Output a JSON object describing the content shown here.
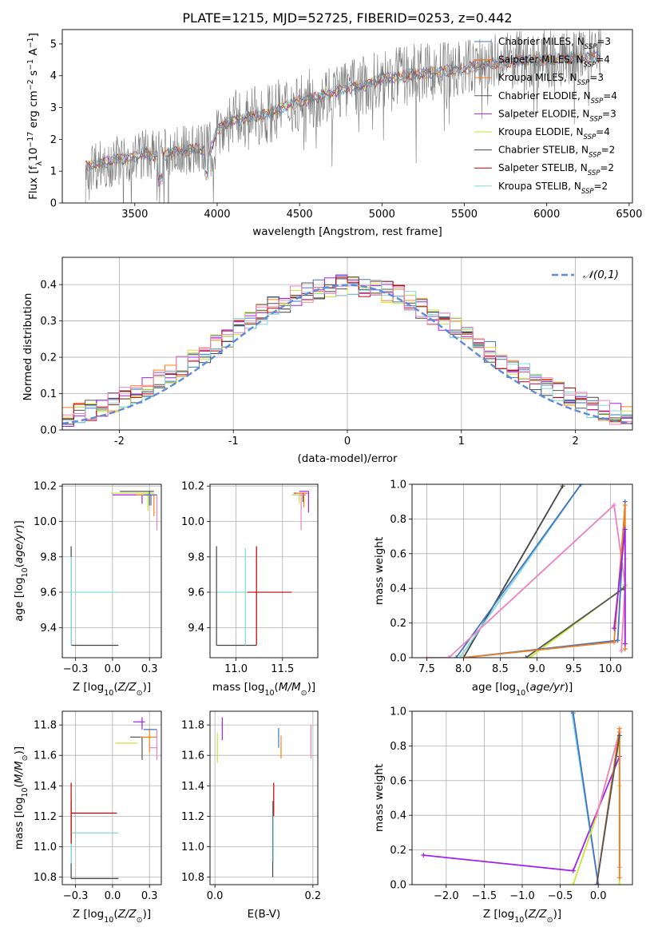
{
  "figure": {
    "title": "PLATE=1215, MJD=52725, FIBERID=0253, z=0.442"
  },
  "styles": {
    "Chabrier MILES": "#4472c4",
    "Salpeter MILES": "#ff7f0e",
    "Kroupa MILES": "#ff7f0e",
    "Chabrier ELODIE": "#555555",
    "Salpeter ELODIE": "#a020f0",
    "Kroupa ELODIE": "#c8e632",
    "Chabrier STELIB": "#444444",
    "Salpeter STELIB": "#c00000",
    "Kroupa STELIB": "#7fd9d9",
    "Kroupa MILES fit": "#ee7f1f",
    "Salpeter MILES pink": "#ee82c0",
    "normal_curve": "#5b8bd9"
  },
  "chart_data": [
    {
      "type": "line",
      "id": "spectrum",
      "xlabel": "wavelength [Angstrom, rest frame]",
      "ylabel": "Flux [f_λ10^-17 erg cm^-2 s^-1 A^-1]",
      "xlim": [
        3060,
        6520
      ],
      "ylim": [
        0,
        5.45
      ],
      "xticks": [
        3500,
        4000,
        4500,
        5000,
        5500,
        6000,
        6500
      ],
      "yticks": [
        0,
        1,
        2,
        3,
        4,
        5
      ],
      "grid": false,
      "legend_position": "upper-right",
      "legend": [
        {
          "label": "Chabrier MILES, N",
          "sub": "SSP",
          "suffix": "=3",
          "style": "Chabrier MILES"
        },
        {
          "label": "Salpeter MILES, N",
          "sub": "SSP",
          "suffix": "=4",
          "style": "Salpeter MILES"
        },
        {
          "label": "Kroupa MILES, N",
          "sub": "SSP",
          "suffix": "=3",
          "style": "Kroupa MILES"
        },
        {
          "label": "Chabrier ELODIE, N",
          "sub": "SSP",
          "suffix": "=4",
          "style": "Chabrier ELODIE"
        },
        {
          "label": "Salpeter ELODIE, N",
          "sub": "SSP",
          "suffix": "=3",
          "style": "Salpeter ELODIE"
        },
        {
          "label": "Kroupa ELODIE, N",
          "sub": "SSP",
          "suffix": "=4",
          "style": "Kroupa ELODIE"
        },
        {
          "label": "Chabrier STELIB, N",
          "sub": "SSP",
          "suffix": "=2",
          "style": "Chabrier STELIB"
        },
        {
          "label": "Salpeter STELIB, N",
          "sub": "SSP",
          "suffix": "=2",
          "style": "Salpeter STELIB"
        },
        {
          "label": "Kroupa STELIB, N",
          "sub": "SSP",
          "suffix": "=2",
          "style": "Kroupa STELIB"
        }
      ],
      "spectrum_knots": {
        "x": [
          3200,
          3300,
          3400,
          3500,
          3550,
          3600,
          3700,
          3800,
          3900,
          3950,
          4000,
          4100,
          4200,
          4300,
          4400,
          4500,
          4600,
          4700,
          4800,
          4900,
          5000,
          5100,
          5200,
          5300,
          5400,
          5500,
          5600,
          5700,
          5800,
          5900,
          6000,
          6100,
          6200,
          6300
        ],
        "y": [
          1.15,
          1.25,
          1.35,
          1.45,
          1.55,
          1.5,
          1.55,
          1.65,
          1.7,
          1.55,
          2.3,
          2.6,
          2.7,
          2.8,
          3.0,
          3.2,
          3.3,
          3.5,
          3.6,
          3.7,
          3.9,
          3.95,
          4.05,
          4.1,
          4.15,
          4.2,
          4.35,
          4.4,
          4.45,
          4.5,
          4.5,
          4.55,
          4.55,
          4.6
        ]
      },
      "data_start": 3200,
      "data_end": 6330
    },
    {
      "type": "histogram",
      "id": "residuals",
      "xlabel": "(data-model)/error",
      "ylabel": "Normed distribution",
      "xlim": [
        -2.5,
        2.5
      ],
      "ylim": [
        0,
        0.475
      ],
      "xticks": [
        -2,
        -1,
        0,
        1,
        2
      ],
      "yticks": [
        0.0,
        0.1,
        0.2,
        0.3,
        0.4
      ],
      "grid": true,
      "legend_position": "upper-right",
      "legend": [
        {
          "label": "𝒩(0,1)",
          "style": "normal_curve",
          "dashed": true
        }
      ],
      "bin_width": 0.1,
      "bin_start": -2.5
    },
    {
      "type": "scatter",
      "id": "age_vs_Z",
      "xlabel": "Z [log10(Z/Z☉)]",
      "ylabel": "age [log10(age/yr)]",
      "xlim": [
        -0.34,
        0.33
      ],
      "ylim": [
        9.23,
        10.21
      ],
      "xticks": [
        -0.25,
        0.0,
        0.25
      ],
      "yticks": [
        9.4,
        9.6,
        9.8,
        10.0,
        10.2
      ],
      "grid": true,
      "points": [
        {
          "x": -0.28,
          "y": 9.3,
          "xerr": [
            0.0,
            0.32
          ],
          "yerr": [
            0.0,
            0.56
          ],
          "style": "Chabrier STELIB"
        },
        {
          "x": -0.28,
          "y": 9.6,
          "xerr": [
            0.0,
            0.32
          ],
          "yerr": [
            0.3,
            0.2
          ],
          "style": "Kroupa STELIB"
        },
        {
          "x": 0.2,
          "y": 10.15,
          "xerr": [
            0.2,
            0.08
          ],
          "yerr": [
            0.05,
            0.0
          ],
          "style": "Salpeter ELODIE"
        },
        {
          "x": 0.24,
          "y": 10.16,
          "xerr": [
            0.25,
            0.04
          ],
          "yerr": [
            0.1,
            0.0
          ],
          "style": "Kroupa ELODIE"
        },
        {
          "x": 0.25,
          "y": 10.17,
          "xerr": [
            0.2,
            0.03
          ],
          "yerr": [
            0.08,
            0.0
          ],
          "style": "Chabrier ELODIE"
        },
        {
          "x": 0.28,
          "y": 10.15,
          "xerr": [
            0.12,
            0.02
          ],
          "yerr": [
            0.12,
            0.0
          ],
          "style": "Kroupa MILES"
        },
        {
          "x": 0.3,
          "y": 10.15,
          "xerr": [
            0.06,
            0.0
          ],
          "yerr": [
            0.2,
            0.0
          ],
          "style": "Salpeter MILES pink"
        },
        {
          "x": 0.26,
          "y": 10.15,
          "xerr": [
            0.05,
            0.04
          ],
          "yerr": [
            0.06,
            0.0
          ],
          "style": "Chabrier MILES"
        }
      ]
    },
    {
      "type": "scatter",
      "id": "age_vs_mass",
      "xlabel": "mass [log10(M/M☉)]",
      "ylabel": "",
      "xlim": [
        10.72,
        11.88
      ],
      "ylim": [
        9.23,
        10.21
      ],
      "xticks": [
        11.0,
        11.5
      ],
      "yticks": [
        9.4,
        9.6,
        9.8,
        10.0,
        10.2
      ],
      "grid": true,
      "points": [
        {
          "x": 10.79,
          "y": 9.3,
          "xerr": [
            0.0,
            0.43
          ],
          "yerr": [
            0.0,
            0.56
          ],
          "style": "Chabrier STELIB"
        },
        {
          "x": 11.1,
          "y": 9.6,
          "xerr": [
            0.3,
            0.0
          ],
          "yerr": [
            0.3,
            0.25
          ],
          "style": "Kroupa STELIB"
        },
        {
          "x": 11.22,
          "y": 9.6,
          "xerr": [
            0.1,
            0.38
          ],
          "yerr": [
            0.3,
            0.26
          ],
          "style": "Salpeter STELIB"
        },
        {
          "x": 11.72,
          "y": 10.16,
          "xerr": [
            0.1,
            0.05
          ],
          "yerr": [
            0.05,
            0.0
          ],
          "style": "Chabrier ELODIE"
        },
        {
          "x": 11.7,
          "y": 10.15,
          "xerr": [
            0.1,
            0.05
          ],
          "yerr": [
            0.2,
            0.0
          ],
          "style": "Salpeter MILES pink"
        },
        {
          "x": 11.73,
          "y": 10.16,
          "xerr": [
            0.08,
            0.04
          ],
          "yerr": [
            0.08,
            0.0
          ],
          "style": "Kroupa MILES"
        },
        {
          "x": 11.78,
          "y": 10.17,
          "xerr": [
            0.1,
            0.0
          ],
          "yerr": [
            0.12,
            0.0
          ],
          "style": "Salpeter ELODIE"
        },
        {
          "x": 11.68,
          "y": 10.15,
          "xerr": [
            0.08,
            0.0
          ],
          "yerr": [
            0.05,
            0.0
          ],
          "style": "Kroupa ELODIE"
        }
      ]
    },
    {
      "type": "line",
      "id": "massweight_vs_age",
      "xlabel": "age [log10(age/yr)]",
      "ylabel": "mass weight",
      "xlim": [
        7.3,
        10.3
      ],
      "ylim": [
        0,
        1.0
      ],
      "xticks": [
        7.5,
        8.0,
        8.5,
        9.0,
        9.5,
        10.0
      ],
      "yticks": [
        0.0,
        0.2,
        0.4,
        0.6,
        0.8,
        1.0
      ],
      "grid": true,
      "series": [
        {
          "style": "Chabrier STELIB",
          "x": [
            8.0,
            9.35
          ],
          "y": [
            0.0,
            0.99
          ]
        },
        {
          "style": "Kroupa STELIB",
          "x": [
            7.95,
            9.6
          ],
          "y": [
            0.0,
            1.0
          ]
        },
        {
          "style": "Chabrier MILES",
          "x": [
            7.9,
            9.6
          ],
          "y": [
            0.0,
            1.0
          ]
        },
        {
          "style": "Salpeter MILES pink",
          "x": [
            7.5,
            7.8,
            10.05,
            10.2,
            10.15
          ],
          "y": [
            0.0,
            0.0,
            0.88,
            0.42,
            0.04
          ]
        },
        {
          "style": "Kroupa ELODIE",
          "x": [
            8.9,
            10.2,
            10.2
          ],
          "y": [
            0.0,
            0.41,
            0.57
          ]
        },
        {
          "style": "Chabrier ELODIE",
          "x": [
            8.85,
            10.18
          ],
          "y": [
            0.0,
            0.4
          ]
        },
        {
          "style": "Chabrier MILES",
          "x": [
            8.0,
            10.1,
            10.2
          ],
          "y": [
            0.0,
            0.1,
            0.9
          ]
        },
        {
          "style": "Kroupa MILES fit",
          "x": [
            8.0,
            10.05,
            10.2,
            10.2
          ],
          "y": [
            0.0,
            0.09,
            0.88,
            0.05
          ]
        },
        {
          "style": "Salpeter ELODIE",
          "x": [
            10.05,
            10.2,
            10.2
          ],
          "y": [
            0.17,
            0.74,
            0.08
          ]
        }
      ]
    },
    {
      "type": "scatter",
      "id": "mass_vs_Z",
      "xlabel": "Z [log10(Z/Z☉)]",
      "ylabel": "mass [log10(M/M☉)]",
      "xlim": [
        -0.34,
        0.33
      ],
      "ylim": [
        10.75,
        11.89
      ],
      "xticks": [
        -0.25,
        0.0,
        0.25
      ],
      "yticks": [
        10.8,
        11.0,
        11.2,
        11.4,
        11.6,
        11.8
      ],
      "grid": true,
      "points": [
        {
          "x": -0.28,
          "y": 10.79,
          "xerr": [
            0.0,
            0.32
          ],
          "yerr": [
            0.0,
            0.51
          ],
          "style": "Chabrier STELIB"
        },
        {
          "x": -0.28,
          "y": 11.09,
          "xerr": [
            0.0,
            0.32
          ],
          "yerr": [
            0.2,
            0.0
          ],
          "style": "Kroupa STELIB"
        },
        {
          "x": -0.28,
          "y": 11.22,
          "xerr": [
            0.0,
            0.31
          ],
          "yerr": [
            0.2,
            0.2
          ],
          "style": "Salpeter STELIB"
        },
        {
          "x": 0.2,
          "y": 11.82,
          "xerr": [
            0.06,
            0.02
          ],
          "yerr": [
            0.05,
            0.03
          ],
          "style": "Salpeter ELODIE"
        },
        {
          "x": 0.17,
          "y": 11.68,
          "xerr": [
            0.15,
            0.0
          ],
          "yerr": [
            0.0,
            0.0
          ],
          "style": "Kroupa ELODIE"
        },
        {
          "x": 0.2,
          "y": 11.72,
          "xerr": [
            0.08,
            0.0
          ],
          "yerr": [
            0.15,
            0.0
          ],
          "style": "Chabrier ELODIE"
        },
        {
          "x": 0.25,
          "y": 11.72,
          "xerr": [
            0.06,
            0.05
          ],
          "yerr": [
            0.1,
            0.05
          ],
          "style": "Kroupa MILES"
        },
        {
          "x": 0.3,
          "y": 11.65,
          "xerr": [
            0.05,
            0.0
          ],
          "yerr": [
            0.08,
            0.12
          ],
          "style": "Salpeter MILES pink"
        },
        {
          "x": 0.26,
          "y": 11.77,
          "xerr": [
            0.05,
            0.04
          ],
          "yerr": [
            0.0,
            0.0
          ],
          "style": "Chabrier MILES"
        }
      ]
    },
    {
      "type": "scatter",
      "id": "mass_vs_ebv",
      "xlabel": "E(B-V)",
      "ylabel": "",
      "xlim": [
        -0.01,
        0.21
      ],
      "ylim": [
        10.75,
        11.89
      ],
      "xticks": [
        0.0,
        0.2
      ],
      "yticks": [
        10.8,
        11.0,
        11.2,
        11.4,
        11.6,
        11.8
      ],
      "grid": true,
      "points": [
        {
          "x": 0.005,
          "y": 11.7,
          "xerr": [
            0,
            0
          ],
          "yerr": [
            0.15,
            0.05
          ],
          "style": "Kroupa ELODIE"
        },
        {
          "x": 0.015,
          "y": 11.75,
          "xerr": [
            0,
            0
          ],
          "yerr": [
            0.05,
            0.1
          ],
          "style": "Salpeter ELODIE"
        },
        {
          "x": 0.118,
          "y": 11.0,
          "xerr": [
            0,
            0
          ],
          "yerr": [
            0.2,
            0.3
          ],
          "style": "Chabrier STELIB"
        },
        {
          "x": 0.119,
          "y": 11.1,
          "xerr": [
            0,
            0
          ],
          "yerr": [
            0.2,
            0.2
          ],
          "style": "Kroupa STELIB"
        },
        {
          "x": 0.12,
          "y": 11.3,
          "xerr": [
            0,
            0
          ],
          "yerr": [
            0.1,
            0.12
          ],
          "style": "Salpeter STELIB"
        },
        {
          "x": 0.13,
          "y": 11.7,
          "xerr": [
            0,
            0
          ],
          "yerr": [
            0.05,
            0.08
          ],
          "style": "Chabrier MILES"
        },
        {
          "x": 0.135,
          "y": 11.68,
          "xerr": [
            0,
            0
          ],
          "yerr": [
            0.1,
            0.05
          ],
          "style": "Kroupa MILES"
        },
        {
          "x": 0.196,
          "y": 11.7,
          "xerr": [
            0,
            0
          ],
          "yerr": [
            0.12,
            0.1
          ],
          "style": "Salpeter MILES pink"
        }
      ]
    },
    {
      "type": "line",
      "id": "massweight_vs_Z",
      "xlabel": "Z [log10(Z/Z☉)]",
      "ylabel": "mass weight",
      "xlim": [
        -2.45,
        0.45
      ],
      "ylim": [
        0,
        1.0
      ],
      "xticks": [
        -2.0,
        -1.5,
        -1.0,
        -0.5,
        0.0
      ],
      "yticks": [
        0.0,
        0.2,
        0.4,
        0.6,
        0.8,
        1.0
      ],
      "grid": true,
      "series": [
        {
          "style": "Salpeter ELODIE",
          "x": [
            -2.3,
            -0.33,
            0.28
          ],
          "y": [
            0.17,
            0.08,
            0.74
          ]
        },
        {
          "style": "Kroupa STELIB",
          "x": [
            -0.35,
            0.0
          ],
          "y": [
            1.0,
            0.0
          ]
        },
        {
          "style": "Chabrier MILES",
          "x": [
            -0.33,
            0.0
          ],
          "y": [
            0.99,
            0.0
          ]
        },
        {
          "style": "Kroupa ELODIE",
          "x": [
            -0.33,
            -0.02,
            0.28,
            0.28,
            0.28
          ],
          "y": [
            0.0,
            0.4,
            0.88,
            0.57,
            0.0
          ]
        },
        {
          "style": "Salpeter MILES pink",
          "x": [
            -0.02,
            0.28,
            0.28
          ],
          "y": [
            0.4,
            0.88,
            0.1
          ]
        },
        {
          "style": "Kroupa MILES fit",
          "x": [
            -0.02,
            0.28,
            0.28
          ],
          "y": [
            0.0,
            0.9,
            0.04
          ]
        },
        {
          "style": "Chabrier ELODIE",
          "x": [
            -0.02,
            0.28
          ],
          "y": [
            0.0,
            0.86
          ]
        }
      ]
    }
  ]
}
